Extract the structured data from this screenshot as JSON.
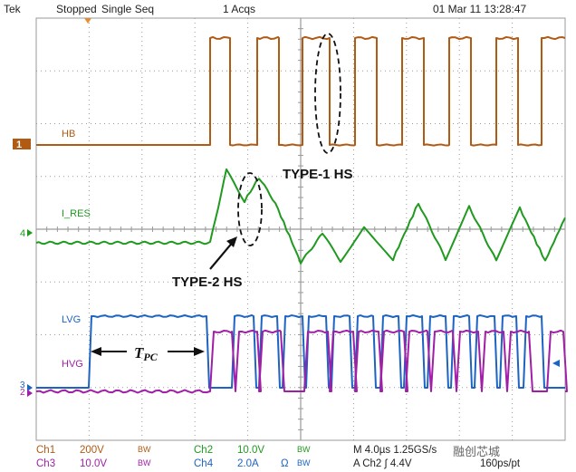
{
  "header": {
    "brand": "Tek",
    "status": "Stopped",
    "mode": "Single Seq",
    "acqs": "1 Acqs",
    "timestamp": "01 Mar 11 13:28:47"
  },
  "channels": {
    "ch1": {
      "label": "HB",
      "color": "#b05a14",
      "marker": "1"
    },
    "ch2": {
      "label": "I_RES",
      "color": "#1f9a1f",
      "marker": "4"
    },
    "ch3": {
      "label": "LVG",
      "color": "#1c63c2",
      "marker": "3"
    },
    "ch4": {
      "label": "HVG",
      "color": "#a01fa6",
      "marker": "2"
    }
  },
  "annotations": {
    "type1": "TYPE-1 HS",
    "type2": "TYPE-2 HS",
    "tpc_main": "T",
    "tpc_sub": "PC"
  },
  "footer": {
    "ch1_name": "Ch1",
    "ch1_scale": "200V",
    "ch1_bw": "BW",
    "ch3_name": "Ch3",
    "ch3_scale": "10.0V",
    "ch3_bw": "BW",
    "ch2_name": "Ch2",
    "ch2_scale": "10.0V",
    "ch2_bw": "BW",
    "ch4_name": "Ch4",
    "ch4_scale": "2.0A",
    "ch4_unit": "Ω",
    "ch4_bw": "BW",
    "timebase": "M 4.0µs 1.25GS/s",
    "trigger": "A  Ch2  ∫  4.4V",
    "resolution": "160ps/pt",
    "watermark": "融创芯城"
  },
  "colors": {
    "grid": "#9a9a9a",
    "annotation": "#111111"
  }
}
